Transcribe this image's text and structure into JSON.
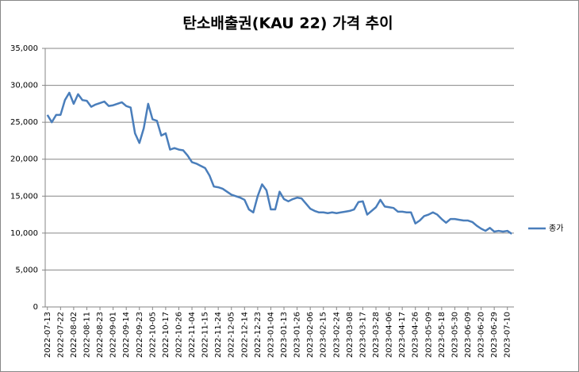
{
  "chart_data": {
    "type": "line",
    "title": "탄소배출권(KAU 22) 가격 추이",
    "categories": [
      "2022-07-13",
      null,
      null,
      "2022-07-22",
      null,
      null,
      "2022-08-02",
      null,
      null,
      "2022-08-11",
      null,
      null,
      "2022-08-23",
      null,
      null,
      "2022-09-01",
      null,
      null,
      "2022-09-14",
      null,
      null,
      "2022-09-23",
      null,
      null,
      "2022-10-05",
      null,
      null,
      "2022-10-17",
      null,
      null,
      "2022-10-26",
      null,
      null,
      "2022-11-04",
      null,
      null,
      "2022-11-15",
      null,
      null,
      "2022-11-24",
      null,
      null,
      "2022-12-05",
      null,
      null,
      "2022-12-14",
      null,
      null,
      "2022-12-23",
      null,
      null,
      "2023-01-04",
      null,
      null,
      "2023-01-13",
      null,
      null,
      "2023-01-26",
      null,
      null,
      "2023-02-06",
      null,
      null,
      "2023-02-15",
      null,
      null,
      "2023-02-24",
      null,
      null,
      "2023-03-08",
      null,
      null,
      "2023-03-17",
      null,
      null,
      "2023-03-28",
      null,
      null,
      "2023-04-06",
      null,
      null,
      "2023-04-17",
      null,
      null,
      "2023-04-26",
      null,
      null,
      "2023-05-09",
      null,
      null,
      "2023-05-18",
      null,
      null,
      "2023-05-30",
      null,
      null,
      "2023-06-09",
      null,
      null,
      "2023-06-20",
      null,
      null,
      "2023-06-29",
      null,
      null,
      "2023-07-10",
      null
    ],
    "series": [
      {
        "name": "종가",
        "color": "#4a7ebb",
        "values": [
          26000,
          25000,
          26000,
          26000,
          28000,
          29000,
          27500,
          28800,
          28000,
          27900,
          27100,
          27400,
          27600,
          27800,
          27200,
          27300,
          27500,
          27700,
          27200,
          27000,
          23500,
          22200,
          24200,
          27500,
          25400,
          25200,
          23200,
          23500,
          21300,
          21500,
          21300,
          21200,
          20500,
          19600,
          19400,
          19100,
          18800,
          17800,
          16300,
          16200,
          16000,
          15600,
          15200,
          15000,
          14800,
          14500,
          13200,
          12800,
          15000,
          16600,
          15800,
          13200,
          13200,
          15600,
          14600,
          14300,
          14600,
          14800,
          14700,
          14000,
          13300,
          13000,
          12800,
          12800,
          12700,
          12800,
          12700,
          12800,
          12900,
          13000,
          13200,
          14200,
          14300,
          12500,
          13000,
          13500,
          14500,
          13600,
          13500,
          13400,
          12900,
          12900,
          12800,
          12800,
          11300,
          11700,
          12300,
          12500,
          12800,
          12500,
          11900,
          11400,
          11900,
          11900,
          11800,
          11700,
          11700,
          11500,
          11000,
          10600,
          10300,
          10700,
          10200,
          10300,
          10200,
          10300,
          9900
        ]
      }
    ],
    "ylim": [
      0,
      35000
    ],
    "yticks": [
      0,
      {
        "value": 5000,
        "label": "5,000"
      },
      {
        "value": 10000,
        "label": "10,000"
      },
      {
        "value": 15000,
        "label": "15,000"
      },
      {
        "value": 20000,
        "label": "20,000"
      },
      {
        "value": 25000,
        "label": "25,000"
      },
      {
        "value": 30000,
        "label": "30,000"
      },
      {
        "value": 35000,
        "label": "35,000"
      }
    ],
    "grid": true,
    "legend": "right"
  }
}
